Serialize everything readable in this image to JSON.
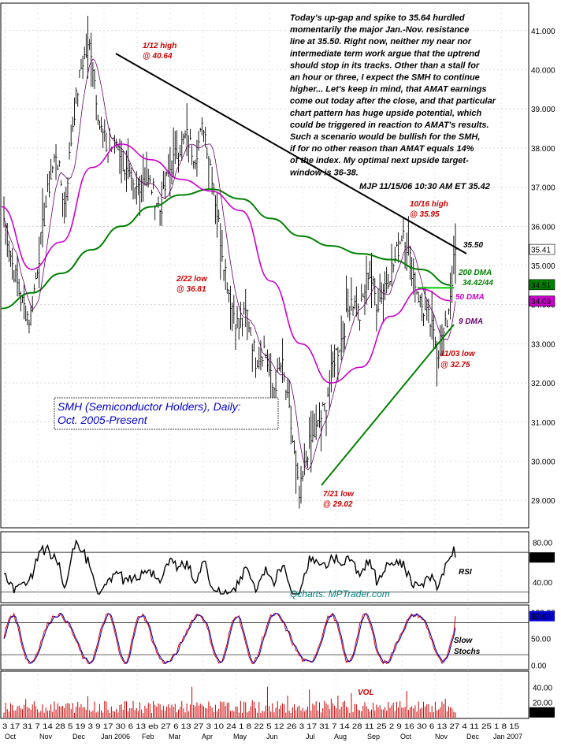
{
  "chart_data": {
    "type": "line",
    "title": "SMH (Semiconductor Holders), Daily:",
    "subtitle": "Oct. 2005-Present",
    "source": "Qcharts: MPTrader.com",
    "commentary": [
      "Today's up-gap and spike to 35.64 hurdled",
      "momentarily the major Jan.-Nov. resistance",
      "line at 35.50. Right now, neither my near nor",
      "intermediate term work argue that the uptrend",
      "should stop in its tracks. Other than a stall for",
      "an hour or three, I expect the SMH to continue",
      "higher... Let's keep in mind, that AMAT earnings",
      "come out today after the close, and that particular",
      "chart pattern has huge upside potential, which",
      "could be triggered in reaction to AMAT's results.",
      "Such a scenario would be bullish for the SMH,",
      "if for no other reason than AMAT equals 14%",
      "of the index. My optimal next upside target-",
      "window is 36-38."
    ],
    "signature": "MJP  11/15/06  10:30 AM ET  35.42",
    "price_axis": {
      "ylim": [
        28.3,
        41.7
      ],
      "ticks": [
        "29.000",
        "30.000",
        "31.000",
        "32.000",
        "33.000",
        "34.000",
        "35.000",
        "36.000",
        "37.000",
        "38.000",
        "39.000",
        "40.000",
        "41.000"
      ],
      "tick_values": [
        29,
        30,
        31,
        32,
        33,
        34,
        35,
        36,
        37,
        38,
        39,
        40,
        41
      ],
      "value_tags": [
        {
          "text": "35.41",
          "value": 35.41,
          "color": "#000000"
        },
        {
          "text": "34.51",
          "value": 34.51,
          "color": "#008000"
        },
        {
          "text": "34.09",
          "value": 34.09,
          "color": "#cc00cc"
        }
      ]
    },
    "annotations": [
      {
        "text": "1/12 high",
        "text2": "@ 40.64",
        "color": "#cc0000"
      },
      {
        "text": "2/22 low",
        "text2": "@ 36.81",
        "color": "#cc0000"
      },
      {
        "text": "7/21 low",
        "text2": "@ 29.02",
        "color": "#cc0000"
      },
      {
        "text": "10/16 high",
        "text2": "@ 35.95",
        "color": "#cc0000"
      },
      {
        "text": "11/03 low",
        "text2": "@ 32.75",
        "color": "#cc0000"
      },
      {
        "text": "35.50",
        "color": "#000000"
      },
      {
        "text": "200 DMA",
        "color": "#008000"
      },
      {
        "text": "34.42/44",
        "color": "#008000"
      },
      {
        "text": "50 DMA",
        "color": "#cc00cc"
      },
      {
        "text": "9 DMA",
        "color": "#660066"
      }
    ],
    "series": [
      {
        "name": "200 DMA",
        "color": "#008000",
        "values": [
          33.9,
          34.3,
          34.8,
          35.4,
          36.0,
          36.5,
          36.8,
          36.95,
          36.7,
          36.2,
          35.75,
          35.5,
          35.3,
          35.15,
          34.9,
          34.5
        ]
      },
      {
        "name": "50 DMA",
        "color": "#cc00cc",
        "values": [
          36.5,
          34.9,
          35.6,
          37.5,
          38.1,
          37.7,
          37.2,
          36.9,
          36.4,
          34.6,
          33.0,
          32.0,
          32.4,
          33.7,
          34.4,
          34.1
        ]
      },
      {
        "name": "9 DMA",
        "color": "#660066"
      }
    ],
    "price_path": [
      36.2,
      35.0,
      34.1,
      33.6,
      35.2,
      36.8,
      37.9,
      36.5,
      38.8,
      40.2,
      40.64,
      38.6,
      37.9,
      38.2,
      37.4,
      36.81,
      37.3,
      37.0,
      36.4,
      37.4,
      37.9,
      38.3,
      37.8,
      38.6,
      37.3,
      35.6,
      34.2,
      33.4,
      33.8,
      32.6,
      32.9,
      31.8,
      32.5,
      31.0,
      29.02,
      30.3,
      30.8,
      31.4,
      32.6,
      33.2,
      34.2,
      33.7,
      34.9,
      34.0,
      34.6,
      35.1,
      35.95,
      34.9,
      34.0,
      33.6,
      32.75,
      33.5,
      35.41
    ],
    "trendlines": [
      {
        "name": "resistance",
        "from": 40.64,
        "to": 35.3,
        "color": "#000000"
      },
      {
        "name": "support",
        "from": 29.02,
        "to": 33.2,
        "color": "#008000"
      },
      {
        "name": "200 DMA level",
        "value": 34.43,
        "color": "#00cc00"
      }
    ],
    "rsi": {
      "label": "RSI",
      "ylim": [
        20,
        90
      ],
      "ticks": [
        "80.00",
        "40.00"
      ],
      "tick_values": [
        80,
        40
      ],
      "value_tag": "64.81",
      "value": 64.81,
      "color": "#000000"
    },
    "stochs": {
      "label1": "Slow",
      "label2": "Stochs",
      "ylim": [
        -5,
        110
      ],
      "ticks": [
        "100.00",
        "50.00",
        "0.00"
      ],
      "tick_values": [
        100,
        50,
        0
      ],
      "value_tag": "92.04",
      "value": 92.04,
      "colors": [
        "#cc0000",
        "#0000cc"
      ]
    },
    "volume": {
      "label": "VOL",
      "ylim": [
        0,
        60
      ],
      "ticks": [
        "40.00",
        "20.00"
      ],
      "tick_values": [
        40,
        20
      ],
      "value_tag": "6.891",
      "value": 6.891,
      "color": "#cc0000"
    },
    "x_axis": {
      "day_labels": [
        "3",
        "17",
        "3117",
        "14",
        "28",
        "5",
        "19",
        "3",
        "9",
        "17",
        "30",
        "6",
        "13",
        "27",
        "6",
        "13",
        "27",
        "3",
        "10",
        "24",
        "1",
        "8",
        "22",
        "5",
        "12",
        "26",
        "3",
        "17",
        "31",
        "7",
        "14",
        "28",
        "11",
        "25",
        "2",
        "9",
        "16",
        "30",
        "6",
        "13",
        "27",
        "4",
        "11",
        "25",
        "1",
        "8",
        "15"
      ],
      "day_labels_text": "3  17  31 7 14  28 5  19  3 9 17  30 6 13 eb  27 6 13  27 3 10  24 1 8  22  5 12  26 3  17 31 7 14  28  11  25 2  9 16  30 6 13  27 4 11  25 1 8 15",
      "month_labels": [
        "Oct",
        "Nov",
        "Dec",
        "Jan 2006",
        "Feb",
        "Mar",
        "Apr",
        "May",
        "Jun",
        "Jul",
        "Aug",
        "Sep",
        "Oct",
        "Nov",
        "Dec",
        "Jan 2007"
      ]
    },
    "grid": true
  }
}
